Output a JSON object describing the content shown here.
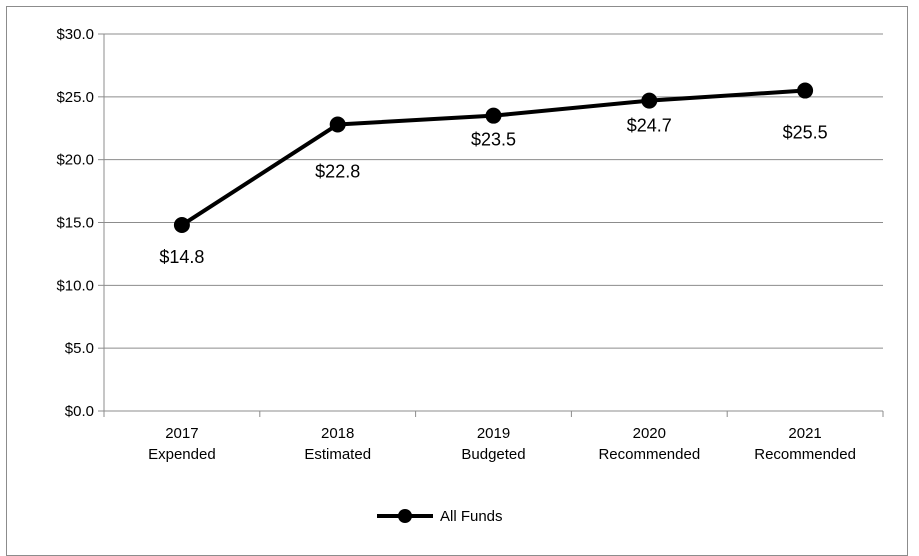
{
  "chart_data": {
    "type": "line",
    "title": "",
    "xlabel": "",
    "ylabel": "",
    "categories": [
      [
        "2017",
        "Expended"
      ],
      [
        "2018",
        "Estimated"
      ],
      [
        "2019",
        "Budgeted"
      ],
      [
        "2020",
        "Recommended"
      ],
      [
        "2021",
        "Recommended"
      ]
    ],
    "series": [
      {
        "name": "All Funds",
        "values": [
          14.8,
          22.8,
          23.5,
          24.7,
          25.5
        ],
        "labels": [
          "$14.8",
          "$22.8",
          "$23.5",
          "$24.7",
          "$25.5"
        ],
        "color": "#000000"
      }
    ],
    "ylim": [
      0,
      30
    ],
    "yticks": [
      0,
      5,
      10,
      15,
      20,
      25,
      30
    ],
    "ytick_labels": [
      "$0.0",
      "$5.0",
      "$10.0",
      "$15.0",
      "$20.0",
      "$25.0",
      "$30.0"
    ],
    "grid": true,
    "legend_position": "bottom"
  }
}
